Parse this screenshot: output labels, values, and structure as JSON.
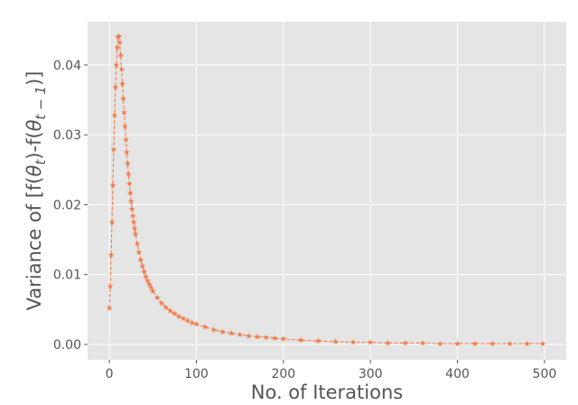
{
  "chart_data": {
    "type": "line",
    "xlabel": "No. of Iterations",
    "ylabel": "Variance of [f(θ_t)-f(θ_{t-1})]",
    "ylabel_parts": {
      "prefix": "Variance of [f(",
      "sym1": "θ",
      "sub1": "t",
      "mid": ")-f(",
      "sym2": "θ",
      "sub2": "t − 1",
      "suffix": ")]"
    },
    "xlim": [
      -25,
      525
    ],
    "ylim": [
      -0.0022,
      0.0462
    ],
    "x_ticks": [
      0,
      100,
      200,
      300,
      400,
      500
    ],
    "x_tick_labels": [
      "0",
      "100",
      "200",
      "300",
      "400",
      "500"
    ],
    "y_ticks": [
      0.0,
      0.01,
      0.02,
      0.03,
      0.04
    ],
    "y_tick_labels": [
      "0.00",
      "0.01",
      "0.02",
      "0.03",
      "0.04"
    ],
    "grid": true,
    "series": [
      {
        "color": "#f47c4b",
        "marker": "star",
        "line_style": "dashed",
        "x": [
          0,
          1,
          2,
          3,
          4,
          5,
          6,
          7,
          8,
          9,
          10,
          11,
          12,
          13,
          14,
          15,
          16,
          17,
          18,
          19,
          20,
          21,
          22,
          23,
          24,
          25,
          26,
          27,
          28,
          29,
          30,
          32,
          34,
          36,
          38,
          40,
          42,
          44,
          46,
          48,
          50,
          55,
          60,
          65,
          70,
          75,
          80,
          85,
          90,
          95,
          100,
          110,
          120,
          130,
          140,
          150,
          160,
          170,
          180,
          190,
          200,
          220,
          240,
          260,
          280,
          300,
          320,
          340,
          360,
          380,
          400,
          420,
          440,
          460,
          480,
          498
        ],
        "y": [
          0.0052,
          0.0083,
          0.0128,
          0.0175,
          0.0228,
          0.0279,
          0.0328,
          0.0368,
          0.04,
          0.0425,
          0.044,
          0.0441,
          0.0432,
          0.0414,
          0.0394,
          0.0373,
          0.0352,
          0.0332,
          0.0312,
          0.0293,
          0.0275,
          0.0259,
          0.0244,
          0.023,
          0.0217,
          0.0205,
          0.0194,
          0.0184,
          0.0175,
          0.0166,
          0.0158,
          0.0144,
          0.0132,
          0.0121,
          0.0112,
          0.0104,
          0.0097,
          0.0091,
          0.0086,
          0.0081,
          0.0076,
          0.0067,
          0.0059,
          0.0053,
          0.0048,
          0.0044,
          0.004,
          0.0037,
          0.0034,
          0.0031,
          0.0029,
          0.0025,
          0.0021,
          0.0018,
          0.0016,
          0.0014,
          0.0012,
          0.0011,
          0.001,
          0.0009,
          0.0008,
          0.0006,
          0.0005,
          0.0004,
          0.0003,
          0.0003,
          0.0002,
          0.0002,
          0.0002,
          0.0001,
          0.0001,
          0.0001,
          0.0001,
          0.0001,
          0.0001,
          0.0001
        ]
      }
    ]
  }
}
